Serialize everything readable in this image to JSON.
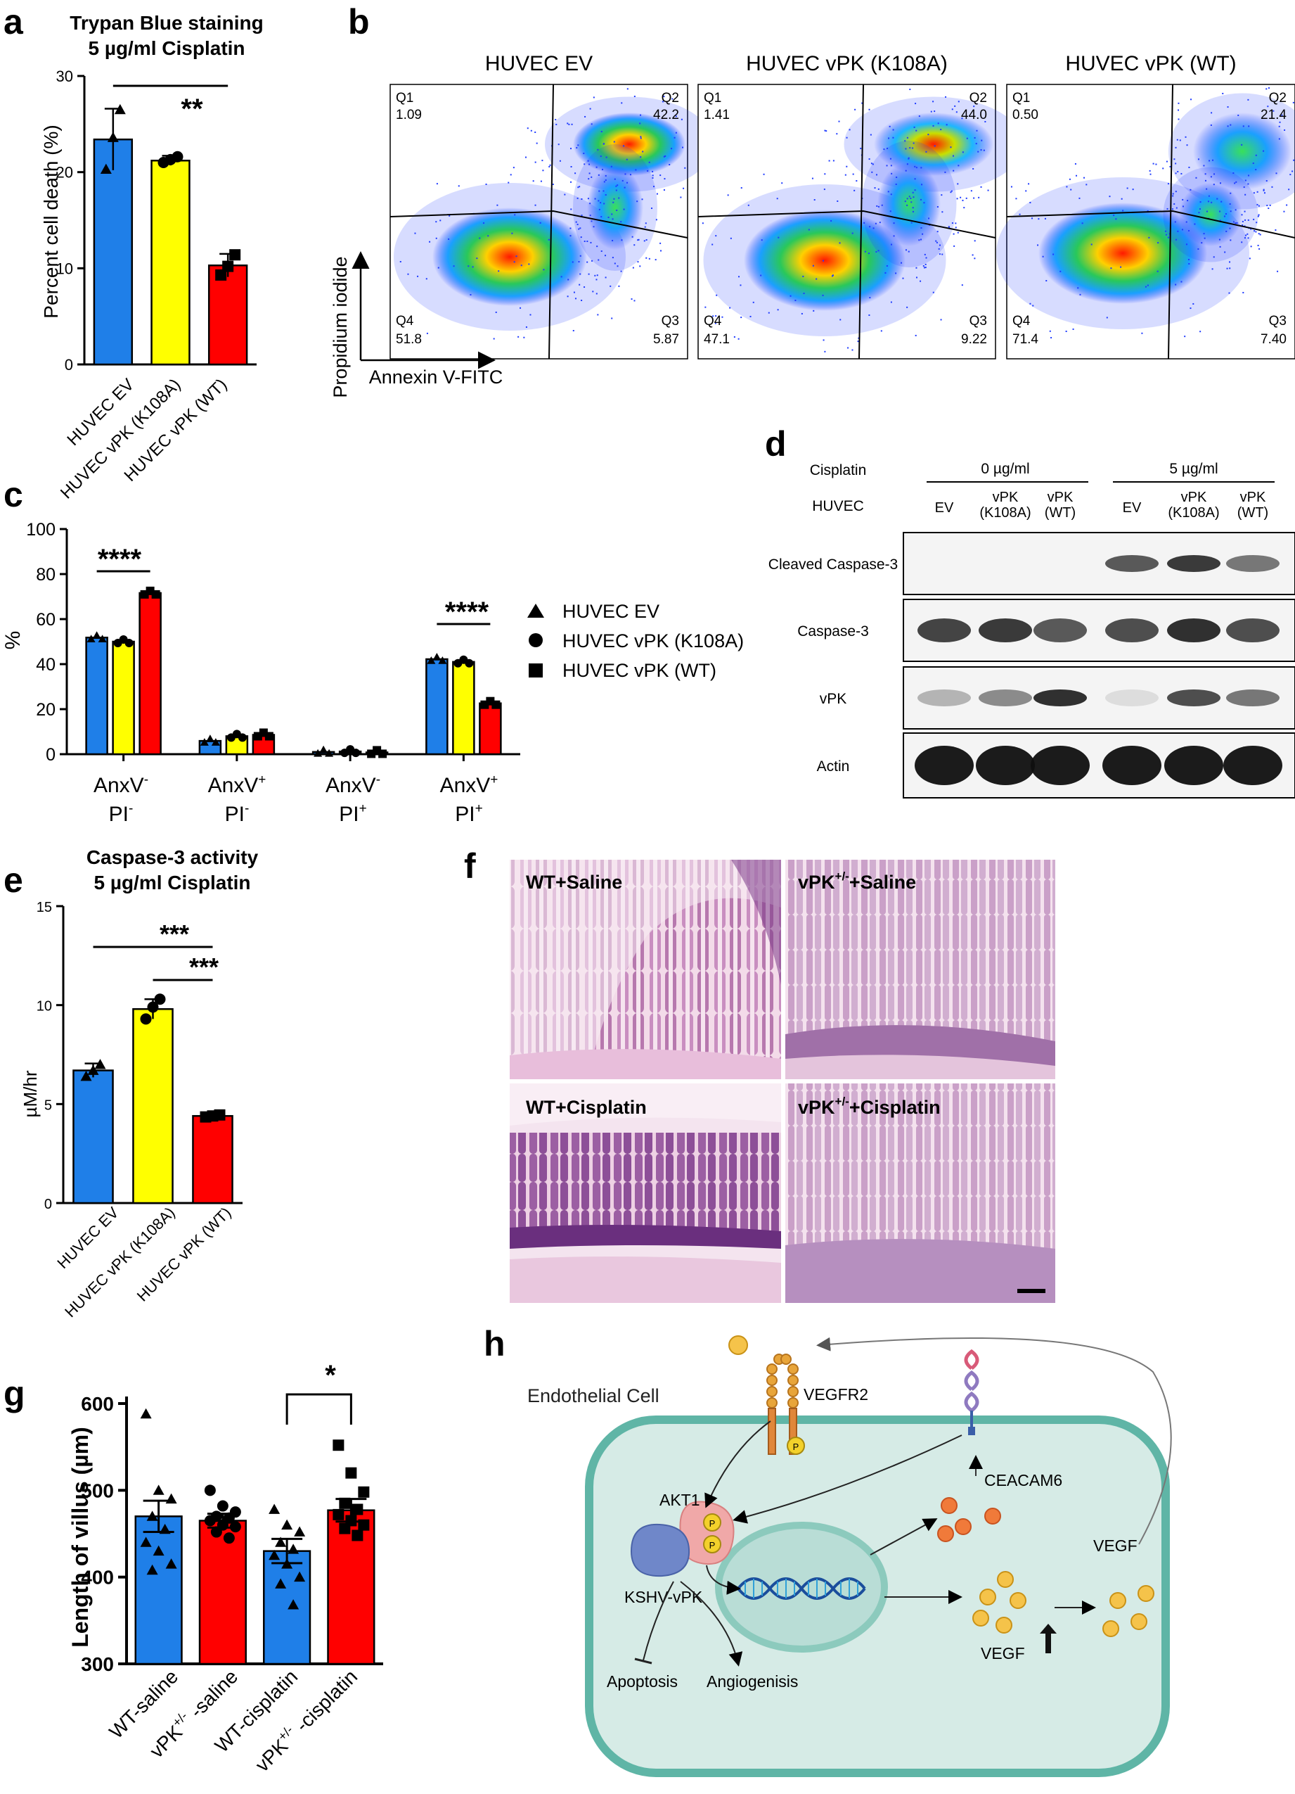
{
  "panels": {
    "a": {
      "letter": "a",
      "title": [
        "Trypan Blue staining",
        "5 µg/ml Cisplatin"
      ],
      "ylabel": "Percent cell death (%)",
      "sig": "**",
      "chart_data": {
        "type": "bar",
        "categories": [
          "HUVEC EV",
          "HUVEC vPK (K108A)",
          "HUVEC vPK (WT)"
        ],
        "values": [
          23.4,
          21.2,
          10.3
        ],
        "errors": [
          3.2,
          0.5,
          1.2
        ],
        "points": [
          [
            20.3,
            23.6,
            26.5
          ],
          [
            21.0,
            21.3,
            21.6
          ],
          [
            9.3,
            10.2,
            11.4
          ]
        ],
        "colors": [
          "#1f7fe8",
          "#ffff00",
          "#ff0000"
        ],
        "ylim": [
          0,
          30
        ],
        "yticks": [
          0,
          10,
          20,
          30
        ]
      }
    },
    "b": {
      "letter": "b",
      "xlabel": "Annexin V-FITC",
      "ylabel": "Propidium iodide",
      "plots": [
        {
          "title": "HUVEC EV",
          "q1": "1.09",
          "q2": "42.2",
          "q3": "5.87",
          "q4": "51.8"
        },
        {
          "title": "HUVEC vPK (K108A)",
          "q1": "1.41",
          "q2": "44.0",
          "q3": "9.22",
          "q4": "47.1"
        },
        {
          "title": "HUVEC vPK (WT)",
          "q1": "0.50",
          "q2": "21.4",
          "q3": "7.40",
          "q4": "71.4"
        }
      ],
      "quadrant_names": [
        "Q1",
        "Q2",
        "Q3",
        "Q4"
      ]
    },
    "c": {
      "letter": "c",
      "ylabel": "%",
      "sig": [
        "****",
        "****"
      ],
      "group_labels": [
        {
          "top": "AnxV",
          "top_sup": "-",
          "bot": "PI",
          "bot_sup": "-"
        },
        {
          "top": "AnxV",
          "top_sup": "+",
          "bot": "PI",
          "bot_sup": "-"
        },
        {
          "top": "AnxV",
          "top_sup": "-",
          "bot": "PI",
          "bot_sup": "+"
        },
        {
          "top": "AnxV",
          "top_sup": "+",
          "bot": "PI",
          "bot_sup": "+"
        }
      ],
      "legend": [
        "HUVEC EV",
        "HUVEC vPK (K108A)",
        "HUVEC vPK (WT)"
      ],
      "chart_data": {
        "type": "bar",
        "categories": [
          "AnxV- PI-",
          "AnxV+ PI-",
          "AnxV- PI+",
          "AnxV+ PI+"
        ],
        "series": [
          {
            "name": "HUVEC EV",
            "values": [
              51.8,
              5.9,
              1.0,
              42.2
            ],
            "color": "#1f7fe8"
          },
          {
            "name": "HUVEC vPK (K108A)",
            "values": [
              50.0,
              8.0,
              1.2,
              41.0
            ],
            "color": "#ffff00"
          },
          {
            "name": "HUVEC vPK (WT)",
            "values": [
              71.6,
              8.6,
              0.8,
              22.6
            ],
            "color": "#ff0000"
          }
        ],
        "ylim": [
          0,
          100
        ],
        "yticks": [
          0,
          20,
          40,
          60,
          80,
          100
        ]
      }
    },
    "d": {
      "letter": "d",
      "cisplatin_label": "Cisplatin",
      "huvec_label": "HUVEC",
      "dose_groups": [
        "0 µg/ml",
        "5 µg/ml"
      ],
      "lanes": [
        [
          "EV"
        ],
        [
          "vPK",
          "(K108A)"
        ],
        [
          "vPK",
          "(WT)"
        ],
        [
          "EV"
        ],
        [
          "vPK",
          "(K108A)"
        ],
        [
          "vPK",
          "(WT)"
        ]
      ],
      "blots": [
        {
          "label": "Cleaved Caspase-3",
          "intensity": [
            0.0,
            0.0,
            0.0,
            0.7,
            0.85,
            0.55
          ]
        },
        {
          "label": "Caspase-3",
          "intensity": [
            0.8,
            0.85,
            0.7,
            0.75,
            0.9,
            0.75
          ]
        },
        {
          "label": "vPK",
          "intensity": [
            0.25,
            0.45,
            0.9,
            0.05,
            0.75,
            0.55
          ]
        },
        {
          "label": "Actin",
          "intensity": [
            1.0,
            1.0,
            1.0,
            1.0,
            1.0,
            1.0
          ]
        }
      ]
    },
    "e": {
      "letter": "e",
      "title": [
        "Caspase-3 activity",
        "5 µg/ml Cisplatin"
      ],
      "ylabel": "µM/hr",
      "sig": [
        "***",
        "***"
      ],
      "chart_data": {
        "type": "bar",
        "categories": [
          "HUVEC EV",
          "HUVEC vPK (K108A)",
          "HUVEC vPK (WT)"
        ],
        "values": [
          6.7,
          9.8,
          4.4
        ],
        "errors": [
          0.35,
          0.5,
          0.08
        ],
        "points": [
          [
            6.4,
            6.7,
            7.0
          ],
          [
            9.3,
            9.9,
            10.3
          ],
          [
            4.35,
            4.4,
            4.45
          ]
        ],
        "colors": [
          "#1f7fe8",
          "#ffff00",
          "#ff0000"
        ],
        "ylim": [
          0,
          15
        ],
        "yticks": [
          0,
          5,
          10,
          15
        ]
      }
    },
    "f": {
      "letter": "f",
      "images": [
        {
          "label": "WT+Saline",
          "sup": ""
        },
        {
          "label": "vPK",
          "sup": "+/-",
          "suffix": "+Saline"
        },
        {
          "label": "WT+Cisplatin",
          "sup": ""
        },
        {
          "label": "vPK",
          "sup": "+/-",
          "suffix": "+Cisplatin"
        }
      ]
    },
    "g": {
      "letter": "g",
      "ylabel": "Length of villus (µm)",
      "sig": "*",
      "xlabels": [
        {
          "text": "WT-saline"
        },
        {
          "text": "vPK",
          "sup": "+/-",
          "suffix": " -saline"
        },
        {
          "text": "WT-cisplatin"
        },
        {
          "text": "vPK",
          "sup": "+/-",
          "suffix": " -cisplatin"
        }
      ],
      "chart_data": {
        "type": "bar",
        "categories": [
          "WT-saline",
          "vPK+/- -saline",
          "WT-cisplatin",
          "vPK+/- -cisplatin"
        ],
        "values": [
          470,
          465,
          430,
          477
        ],
        "errors": [
          18,
          8,
          14,
          13
        ],
        "colors": [
          "#1f7fe8",
          "#ff0000",
          "#1f7fe8",
          "#ff0000"
        ],
        "markers": [
          "triangle",
          "circle",
          "triangle",
          "square"
        ],
        "points": [
          [
            588,
            500,
            490,
            470,
            455,
            440,
            430,
            415,
            408
          ],
          [
            500,
            482,
            475,
            470,
            468,
            465,
            460,
            458,
            452,
            445
          ],
          [
            478,
            460,
            452,
            440,
            432,
            425,
            415,
            400,
            392,
            368
          ],
          [
            552,
            520,
            498,
            485,
            478,
            472,
            465,
            460,
            456,
            448
          ]
        ],
        "ylim": [
          300,
          600
        ],
        "yticks": [
          300,
          400,
          500,
          600
        ]
      }
    },
    "h": {
      "letter": "h",
      "cell_label": "Endothelial Cell",
      "labels": {
        "vegfr2": "VEGFR2",
        "akt1": "AKT1",
        "kshv": "KSHV-vPK",
        "ceacam6": "CEACAM6",
        "vegf_out": "VEGF",
        "vegf_in": "VEGF",
        "apoptosis": "Apoptosis",
        "angiogenesis": "Angiogenisis",
        "p": "P"
      }
    }
  }
}
